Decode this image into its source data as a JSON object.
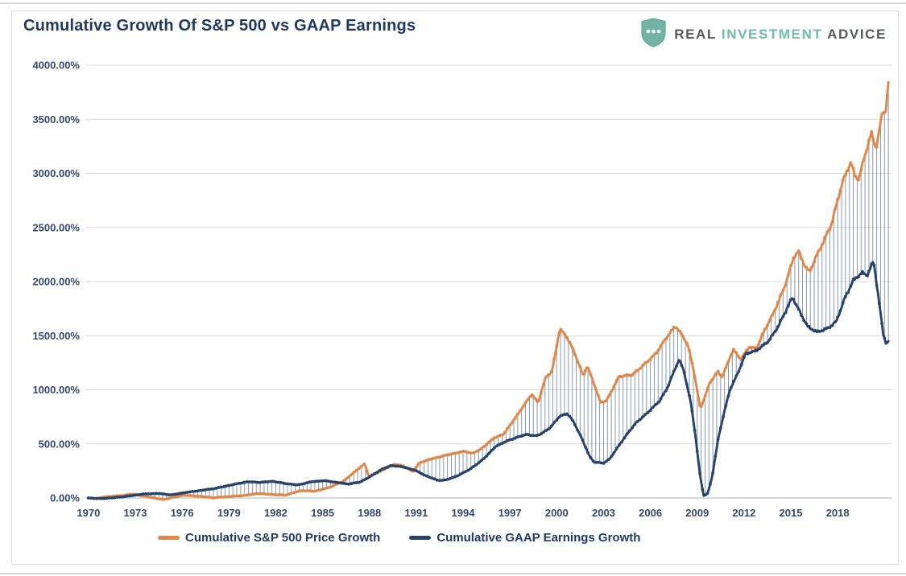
{
  "header": {
    "title": "Cumulative Growth Of S&P 500 vs GAAP Earnings",
    "brand": {
      "word1": "REAL",
      "word2": "INVESTMENT",
      "word3": "ADVICE"
    }
  },
  "colors": {
    "title_navy": "#1f3864",
    "sp500_orange": "#e0874a",
    "gaap_navy": "#27436b",
    "hatch_slate": "#3d5c87",
    "gridline": "#d9d9d9",
    "axis_line": "#c7cbd2",
    "tick_text": "#32476e",
    "brand_teal": "#72b4a4",
    "brand_gray": "#56585a"
  },
  "chart_data": {
    "type": "line",
    "title": "Cumulative Growth Of S&P 500 vs GAAP Earnings",
    "xlabel": "",
    "ylabel": "",
    "ylim": [
      0,
      4000
    ],
    "y_tick_step": 500,
    "y_tick_labels": [
      "0.00%",
      "500.00%",
      "1000.00%",
      "1500.00%",
      "2000.00%",
      "2500.00%",
      "3000.00%",
      "3500.00%",
      "4000.00%"
    ],
    "x_ticks": [
      1970,
      1973,
      1976,
      1979,
      1982,
      1985,
      1988,
      1991,
      1994,
      1997,
      2000,
      2003,
      2006,
      2009,
      2012,
      2015,
      2018
    ],
    "x_range": [
      1969.8,
      2021.5
    ],
    "grid": true,
    "legend_position": "bottom",
    "hatch_between_series": true,
    "series": [
      {
        "name": "Cumulative S&P 500 Price Growth",
        "color": "#e0874a",
        "keypoints": [
          [
            1970.0,
            0
          ],
          [
            1970.6,
            -6
          ],
          [
            1971.0,
            10
          ],
          [
            1971.6,
            16
          ],
          [
            1972.0,
            20
          ],
          [
            1972.9,
            36
          ],
          [
            1973.6,
            16
          ],
          [
            1974.2,
            0
          ],
          [
            1974.8,
            -16
          ],
          [
            1975.4,
            6
          ],
          [
            1976.1,
            26
          ],
          [
            1976.9,
            18
          ],
          [
            1978.0,
            2
          ],
          [
            1978.9,
            12
          ],
          [
            1979.9,
            22
          ],
          [
            1980.9,
            42
          ],
          [
            1981.5,
            34
          ],
          [
            1982.6,
            26
          ],
          [
            1983.6,
            68
          ],
          [
            1984.5,
            62
          ],
          [
            1985.4,
            96
          ],
          [
            1986.3,
            152
          ],
          [
            1987.0,
            235
          ],
          [
            1987.7,
            318
          ],
          [
            1987.95,
            200
          ],
          [
            1988.5,
            232
          ],
          [
            1989.6,
            312
          ],
          [
            1990.2,
            295
          ],
          [
            1990.8,
            242
          ],
          [
            1991.2,
            325
          ],
          [
            1992.0,
            362
          ],
          [
            1993.1,
            402
          ],
          [
            1994.1,
            432
          ],
          [
            1994.6,
            412
          ],
          [
            1995.1,
            448
          ],
          [
            1996.0,
            556
          ],
          [
            1996.6,
            590
          ],
          [
            1997.5,
            772
          ],
          [
            1998.4,
            962
          ],
          [
            1998.8,
            878
          ],
          [
            1999.3,
            1118
          ],
          [
            1999.7,
            1168
          ],
          [
            2000.2,
            1565
          ],
          [
            2000.7,
            1475
          ],
          [
            2001.1,
            1355
          ],
          [
            2001.7,
            1128
          ],
          [
            2001.95,
            1222
          ],
          [
            2002.4,
            1052
          ],
          [
            2002.8,
            882
          ],
          [
            2003.2,
            902
          ],
          [
            2004.0,
            1125
          ],
          [
            2004.8,
            1135
          ],
          [
            2005.6,
            1232
          ],
          [
            2006.4,
            1342
          ],
          [
            2007.0,
            1478
          ],
          [
            2007.6,
            1588
          ],
          [
            2007.9,
            1535
          ],
          [
            2008.4,
            1415
          ],
          [
            2008.8,
            1162
          ],
          [
            2009.2,
            822
          ],
          [
            2009.8,
            1062
          ],
          [
            2010.3,
            1168
          ],
          [
            2010.6,
            1118
          ],
          [
            2011.3,
            1372
          ],
          [
            2011.8,
            1282
          ],
          [
            2012.3,
            1392
          ],
          [
            2012.8,
            1385
          ],
          [
            2013.3,
            1545
          ],
          [
            2013.9,
            1712
          ],
          [
            2014.6,
            1952
          ],
          [
            2015.2,
            2232
          ],
          [
            2015.5,
            2278
          ],
          [
            2015.9,
            2142
          ],
          [
            2016.2,
            2088
          ],
          [
            2016.6,
            2225
          ],
          [
            2017.1,
            2372
          ],
          [
            2017.6,
            2532
          ],
          [
            2018.3,
            2918
          ],
          [
            2018.85,
            3108
          ],
          [
            2019.1,
            2968
          ],
          [
            2019.35,
            2952
          ],
          [
            2019.9,
            3248
          ],
          [
            2020.15,
            3372
          ],
          [
            2020.45,
            3228
          ],
          [
            2020.9,
            3582
          ],
          [
            2021.05,
            3548
          ],
          [
            2021.3,
            3905
          ]
        ]
      },
      {
        "name": "Cumulative GAAP Earnings Growth",
        "color": "#27436b",
        "keypoints": [
          [
            1970.0,
            0
          ],
          [
            1970.8,
            -6
          ],
          [
            1971.6,
            2
          ],
          [
            1972.5,
            16
          ],
          [
            1973.5,
            36
          ],
          [
            1974.5,
            42
          ],
          [
            1975.3,
            28
          ],
          [
            1976.1,
            48
          ],
          [
            1977.1,
            68
          ],
          [
            1978.1,
            88
          ],
          [
            1979.2,
            122
          ],
          [
            1980.2,
            150
          ],
          [
            1981.0,
            144
          ],
          [
            1981.8,
            154
          ],
          [
            1982.6,
            134
          ],
          [
            1983.4,
            120
          ],
          [
            1984.3,
            150
          ],
          [
            1985.1,
            160
          ],
          [
            1985.9,
            144
          ],
          [
            1986.6,
            128
          ],
          [
            1987.4,
            146
          ],
          [
            1988.1,
            202
          ],
          [
            1988.8,
            266
          ],
          [
            1989.4,
            300
          ],
          [
            1990.1,
            288
          ],
          [
            1990.9,
            258
          ],
          [
            1991.6,
            206
          ],
          [
            1992.4,
            162
          ],
          [
            1992.9,
            166
          ],
          [
            1993.6,
            202
          ],
          [
            1994.4,
            262
          ],
          [
            1995.1,
            335
          ],
          [
            1995.6,
            402
          ],
          [
            1996.1,
            478
          ],
          [
            1996.7,
            520
          ],
          [
            1997.4,
            558
          ],
          [
            1998.1,
            588
          ],
          [
            1998.7,
            572
          ],
          [
            1999.1,
            602
          ],
          [
            1999.6,
            652
          ],
          [
            2000.2,
            758
          ],
          [
            2000.7,
            778
          ],
          [
            2001.1,
            698
          ],
          [
            2001.6,
            552
          ],
          [
            2002.1,
            385
          ],
          [
            2002.4,
            330
          ],
          [
            2003.0,
            322
          ],
          [
            2003.4,
            362
          ],
          [
            2003.9,
            468
          ],
          [
            2004.6,
            608
          ],
          [
            2005.1,
            698
          ],
          [
            2005.6,
            758
          ],
          [
            2006.1,
            828
          ],
          [
            2006.6,
            898
          ],
          [
            2007.1,
            1022
          ],
          [
            2007.6,
            1202
          ],
          [
            2007.85,
            1278
          ],
          [
            2008.15,
            1172
          ],
          [
            2008.6,
            872
          ],
          [
            2008.9,
            562
          ],
          [
            2009.15,
            242
          ],
          [
            2009.4,
            22
          ],
          [
            2009.65,
            35
          ],
          [
            2009.95,
            188
          ],
          [
            2010.35,
            552
          ],
          [
            2010.75,
            805
          ],
          [
            2011.1,
            1002
          ],
          [
            2011.6,
            1152
          ],
          [
            2012.1,
            1332
          ],
          [
            2012.6,
            1352
          ],
          [
            2013.1,
            1392
          ],
          [
            2013.6,
            1455
          ],
          [
            2014.2,
            1588
          ],
          [
            2015.1,
            1855
          ],
          [
            2015.6,
            1712
          ],
          [
            2016.1,
            1578
          ],
          [
            2016.7,
            1535
          ],
          [
            2017.3,
            1562
          ],
          [
            2017.9,
            1628
          ],
          [
            2018.5,
            1862
          ],
          [
            2019.0,
            2008
          ],
          [
            2019.55,
            2082
          ],
          [
            2019.9,
            2058
          ],
          [
            2020.3,
            2192
          ],
          [
            2020.6,
            1872
          ],
          [
            2020.9,
            1528
          ],
          [
            2021.1,
            1428
          ],
          [
            2021.3,
            1452
          ]
        ]
      }
    ]
  },
  "legend": {
    "items": [
      {
        "label": "Cumulative S&P 500 Price Growth",
        "color": "#e0874a"
      },
      {
        "label": "Cumulative GAAP Earnings Growth",
        "color": "#27436b"
      }
    ]
  }
}
